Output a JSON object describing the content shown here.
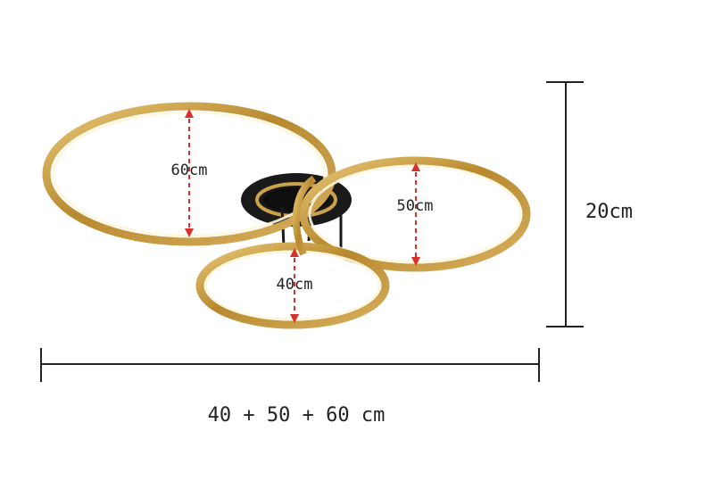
{
  "labels": {
    "ring_large": "60cm",
    "ring_medium": "50cm",
    "ring_small": "40cm",
    "height": "20cm",
    "total_width": "40 + 50 + 60 cm"
  },
  "colors": {
    "ring_gold": "#c9a24a",
    "ring_inner_light": "#fff6dc",
    "arrow_red": "#d8302a",
    "dimension_line": "#222222",
    "base_black": "#1a1a1a"
  },
  "icons": {
    "fixture": "ceiling-light-rings"
  }
}
